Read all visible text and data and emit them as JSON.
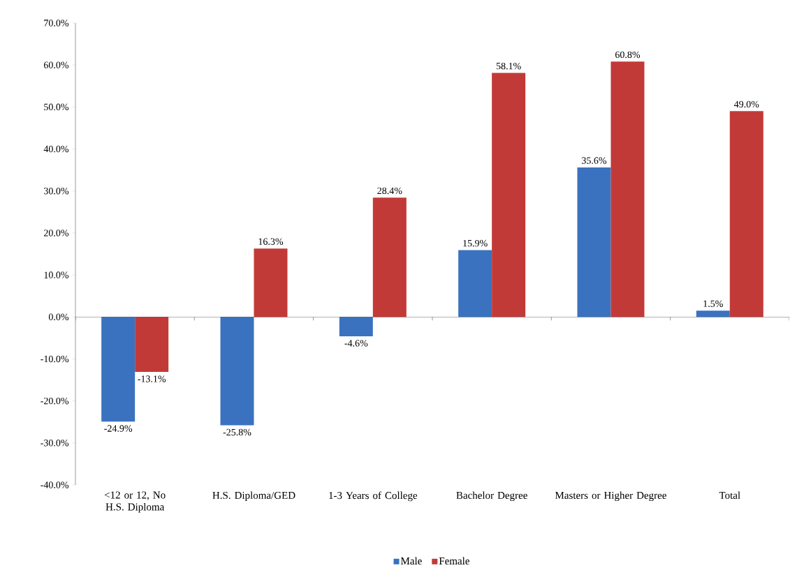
{
  "chart_data": {
    "type": "bar",
    "categories": [
      "<12 or 12, No H.S. Diploma",
      "H.S. Diploma/GED",
      "1-3 Years of College",
      "Bachelor Degree",
      "Masters or Higher Degree",
      "Total"
    ],
    "series": [
      {
        "name": "Male",
        "color": "#3a72c0",
        "values": [
          -24.9,
          -25.8,
          -4.6,
          15.9,
          35.6,
          1.5
        ],
        "value_labels": [
          "-24.9%",
          "-25.8%",
          "-4.6%",
          "15.9%",
          "35.6%",
          "1.5%"
        ]
      },
      {
        "name": "Female",
        "color": "#c23a38",
        "values": [
          -13.1,
          16.3,
          28.4,
          58.1,
          60.8,
          49.0
        ],
        "value_labels": [
          "-13.1%",
          "16.3%",
          "28.4%",
          "58.1%",
          "60.8%",
          "49.0%"
        ]
      }
    ],
    "ylim": [
      -40,
      70
    ],
    "yticks": [
      {
        "value": -40,
        "label": "-40.0%"
      },
      {
        "value": -30,
        "label": "-30.0%"
      },
      {
        "value": -20,
        "label": "-20.0%"
      },
      {
        "value": -10,
        "label": "-10.0%"
      },
      {
        "value": 0,
        "label": "0.0%"
      },
      {
        "value": 10,
        "label": "10.0%"
      },
      {
        "value": 20,
        "label": "20.0%"
      },
      {
        "value": 30,
        "label": "30.0%"
      },
      {
        "value": 40,
        "label": "40.0%"
      },
      {
        "value": 50,
        "label": "50.0%"
      },
      {
        "value": 60,
        "label": "60.0%"
      },
      {
        "value": 70,
        "label": "70.0%"
      }
    ],
    "legend": "bottom"
  }
}
